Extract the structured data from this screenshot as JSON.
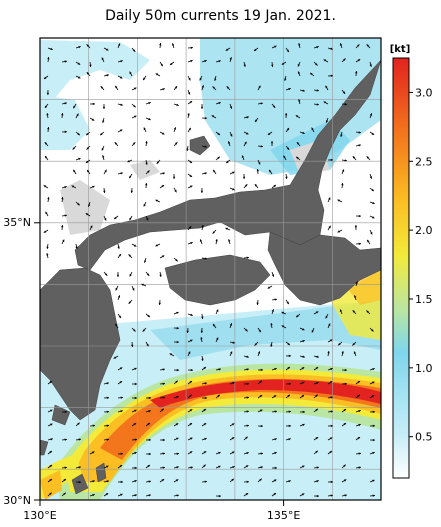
{
  "title": "Daily 50m currents 19 Jan. 2021.",
  "axes": {
    "lat_labels": [
      {
        "label": "35°N",
        "value": 35
      },
      {
        "label": "30°N",
        "value": 30
      }
    ],
    "lon_labels": [
      {
        "label": "130°E",
        "value": 130
      },
      {
        "label": "135°E",
        "value": 135
      }
    ],
    "lon_range": [
      130,
      137
    ],
    "lat_range": [
      30,
      37.5
    ]
  },
  "colorbar": {
    "unit": "[kt]",
    "ticks": [
      "0.5",
      "1.0",
      "1.5",
      "2.0",
      "2.5",
      "3.0"
    ],
    "range": [
      0.2,
      3.25
    ],
    "colors": [
      "#ffffff",
      "#c8eef8",
      "#7fd6ec",
      "#b9e6a2",
      "#f3ea3a",
      "#fbbe23",
      "#f3761d",
      "#e2231f"
    ]
  },
  "colors": {
    "land": "#606060",
    "shallow": "#d9d9d9",
    "grid": "#9a9a9a",
    "arrow": "#000000"
  }
}
